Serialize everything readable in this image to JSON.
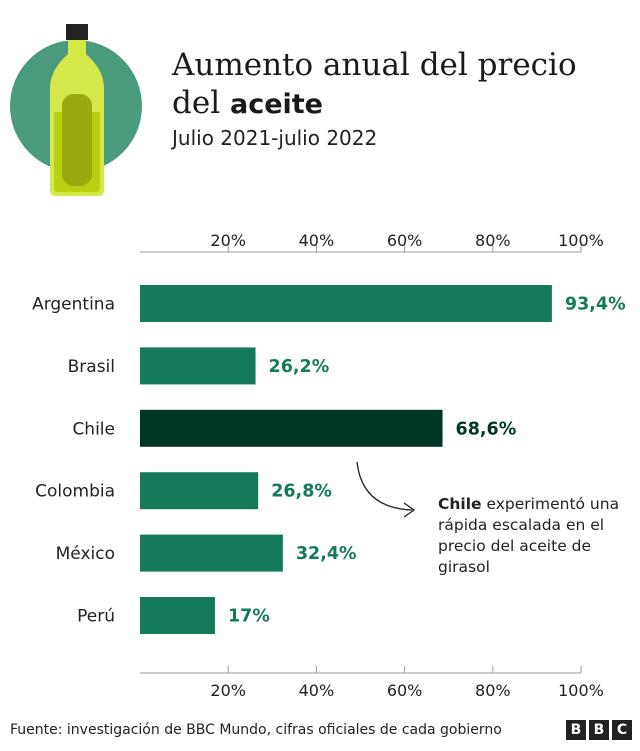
{
  "header": {
    "title_line1": "Aumento anual del precio",
    "title_line2_prefix": "del ",
    "title_line2_bold": "aceite",
    "subtitle": "Julio 2021-julio 2022",
    "illustration_icon": "olive-oil-bottle-icon"
  },
  "chart_data": {
    "type": "bar",
    "orientation": "horizontal",
    "title": "Aumento anual del precio del aceite",
    "subtitle": "Julio 2021-julio 2022",
    "categories": [
      "Argentina",
      "Brasil",
      "Chile",
      "Colombia",
      "México",
      "Perú"
    ],
    "values": [
      93.4,
      26.2,
      68.6,
      26.8,
      32.4,
      17
    ],
    "value_labels": [
      "93,4%",
      "26,2%",
      "68,6%",
      "26,8%",
      "32,4%",
      "17%"
    ],
    "highlight": "Chile",
    "xlim": [
      0,
      100
    ],
    "tick_values": [
      20,
      40,
      60,
      80,
      100
    ],
    "tick_labels": [
      "20%",
      "40%",
      "60%",
      "80%",
      "100%"
    ],
    "grid": true,
    "axis_labels_position": "top and bottom"
  },
  "annotation": {
    "bold": "Chile",
    "text": " experimentó una rápida escalada en el precio del aceite de girasol"
  },
  "colors": {
    "bar": "#157a5c",
    "highlight_bar": "#003626",
    "label": "#157a5c",
    "highlight_label": "#003626",
    "circle": "#4a9a7c",
    "oil": "#c7e01c"
  },
  "footer": {
    "source": "Fuente: investigación de BBC Mundo, cifras oficiales de cada gobierno",
    "logo_letters": [
      "B",
      "B",
      "C"
    ]
  }
}
